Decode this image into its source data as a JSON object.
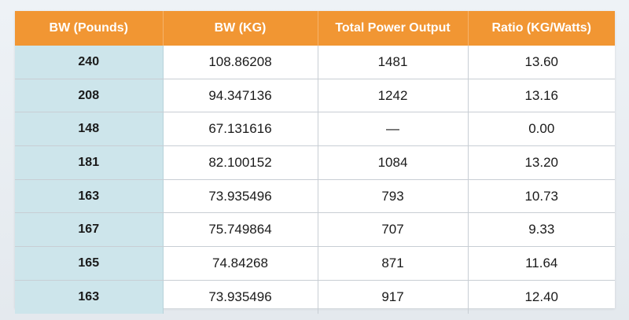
{
  "table": {
    "headers": [
      "BW (Pounds)",
      "BW (KG)",
      "Total Power Output",
      "Ratio (KG/Watts)"
    ],
    "rows": [
      [
        "240",
        "108.86208",
        "1481",
        "13.60"
      ],
      [
        "208",
        "94.347136",
        "1242",
        "13.16"
      ],
      [
        "148",
        "67.131616",
        "—",
        "0.00"
      ],
      [
        "181",
        "82.100152",
        "1084",
        "13.20"
      ],
      [
        "163",
        "73.935496",
        "793",
        "10.73"
      ],
      [
        "167",
        "75.749864",
        "707",
        "9.33"
      ],
      [
        "165",
        "74.84268",
        "871",
        "11.64"
      ],
      [
        "163",
        "73.935496",
        "917",
        "12.40"
      ]
    ]
  },
  "colors": {
    "header_bg": "#f19633",
    "header_text": "#ffffff",
    "first_col_bg": "#cde5eb",
    "grid_line": "#c8ced4"
  }
}
